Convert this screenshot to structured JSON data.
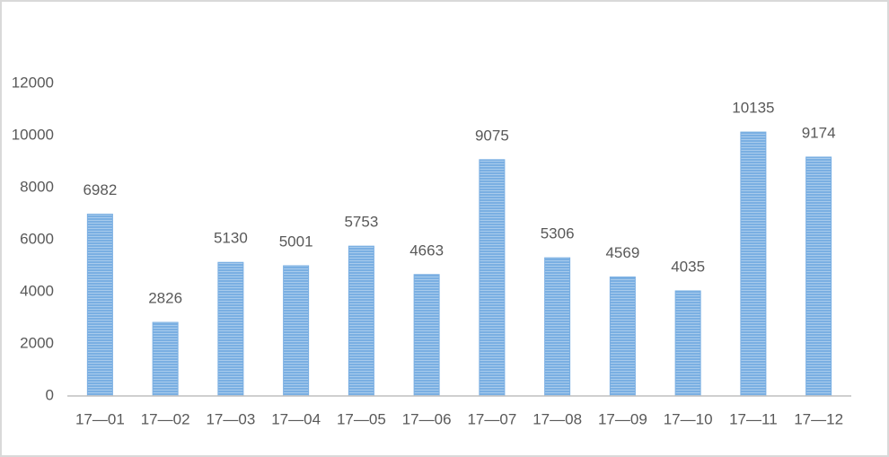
{
  "chart_data": {
    "type": "bar",
    "categories": [
      "17—01",
      "17—02",
      "17—03",
      "17—04",
      "17—05",
      "17—06",
      "17—07",
      "17—08",
      "17—09",
      "17—10",
      "17—11",
      "17—12"
    ],
    "values": [
      6982,
      2826,
      5130,
      5001,
      5753,
      4663,
      9075,
      5306,
      4569,
      4035,
      10135,
      9174
    ],
    "color": "#7aafe2",
    "ylim": [
      0,
      12000
    ],
    "yticks": [
      0,
      2000,
      4000,
      6000,
      8000,
      10000,
      12000
    ],
    "grid": false
  }
}
